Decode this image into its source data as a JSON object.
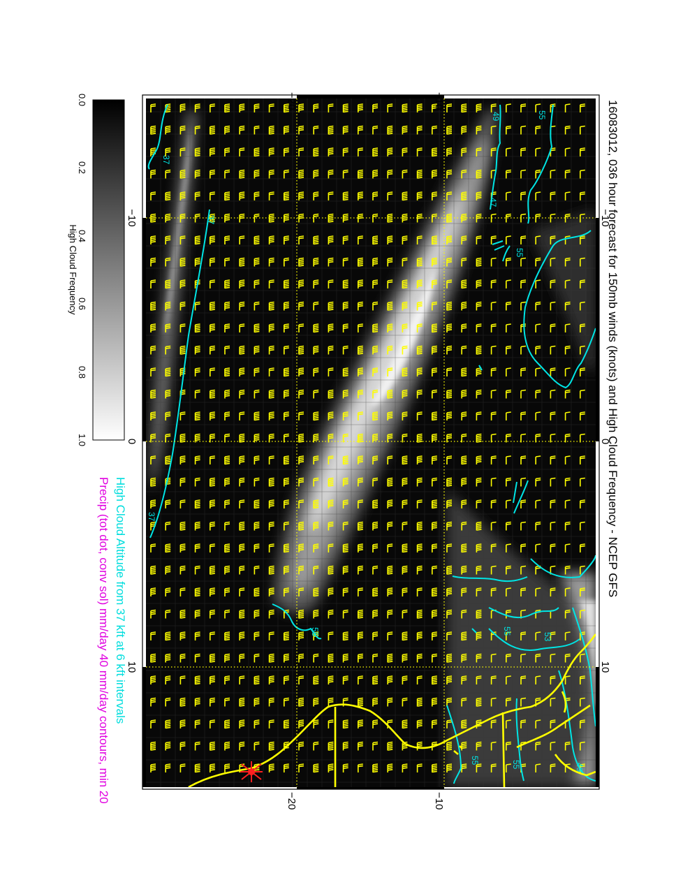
{
  "title": "16083012, 036 hour forecast for 150mb winds (knots) and High Cloud Frequency - NCEP GFS",
  "subtitle_cyan": "High Cloud Altitude from 37 kft at 6 kft intervals",
  "subtitle_magenta": "Precip (tot dot, conv sol) mm/day 40 mm/day contours, min 20",
  "colorbar": {
    "label": "High Cloud Frequency",
    "ticks": [
      "0.0",
      "0.2",
      "0.4",
      "0.6",
      "0.8",
      "1.0"
    ]
  },
  "axes": {
    "lon_labels_top": [
      "−20",
      "−10"
    ],
    "lon_labels_bottom": [
      "−20",
      "−10"
    ],
    "lat_labels_left": [
      "−10",
      "0",
      "10"
    ],
    "lat_labels_right": [
      "−10",
      "0",
      "10"
    ]
  },
  "contour_labels": [
    "49",
    "55",
    "55",
    "47",
    "37",
    "37",
    "37",
    "55",
    "55",
    "53",
    "55",
    "49",
    "55"
  ],
  "colors": {
    "wind_barbs": "#ffff00",
    "coastline": "#ffff00",
    "cloud_altitude_contours": "#00e5e5",
    "precip_text": "#e000e0",
    "marker": "#ff0000"
  }
}
